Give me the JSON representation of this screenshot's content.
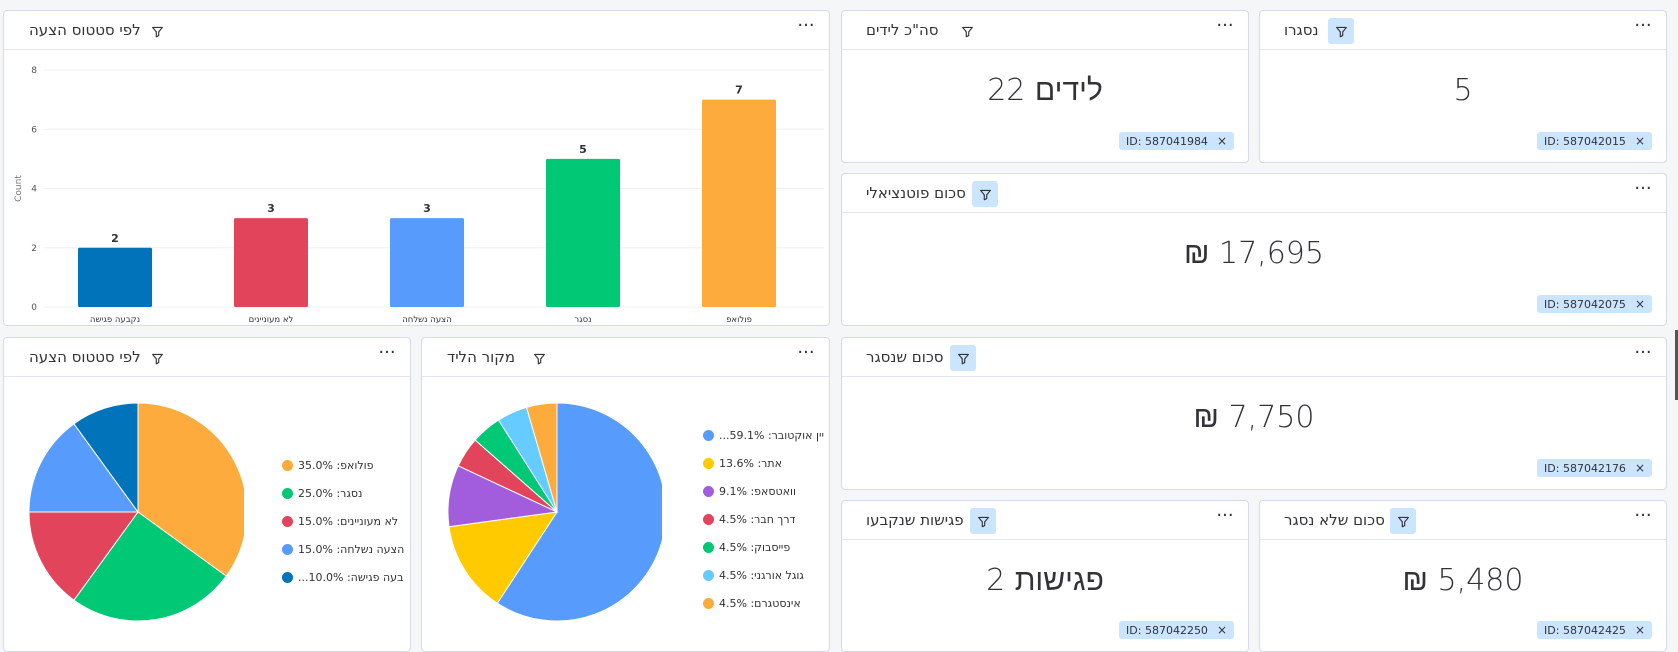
{
  "colors": {
    "orange": "#FDAB3D",
    "green": "#00C875",
    "red": "#E2445C",
    "blue": "#579BFC",
    "dark_blue": "#0073BB",
    "yellow": "#FFCB00",
    "purple": "#A25DDC",
    "light_blue": "#66CCFF"
  },
  "widgets": {
    "bar_card": {
      "title": "לפי סטטוס הצעה",
      "filter_icon": "filter-icon",
      "menu_icon": "more-icon",
      "menu_label": "···"
    },
    "total_leads": {
      "title": "סה\"כ לידים",
      "value": "22 לידים",
      "chip": "ID: 587041984",
      "chip_close": "×"
    },
    "closed": {
      "title": "נסגרו",
      "value": "5",
      "chip": "ID: 587042015",
      "chip_close": "×"
    },
    "potential": {
      "title": "סכום פוטנציאלי",
      "value": "₪ 17,695",
      "chip": "ID: 587042075",
      "chip_close": "×"
    },
    "closed_amount": {
      "title": "סכום שנסגר",
      "value": "₪ 7,750",
      "chip": "ID: 587042176",
      "chip_close": "×"
    },
    "meetings": {
      "title": "פגישות שנקבעו",
      "value": "2 פגישות",
      "chip": "ID: 587042250",
      "chip_close": "×"
    },
    "not_closed": {
      "title": "סכום שלא נסגר",
      "value": "₪ 5,480",
      "chip": "ID: 587042425",
      "chip_close": "×"
    },
    "pie_status": {
      "title": "לפי סטטוס הצעה"
    },
    "pie_source": {
      "title": "מקור הליד"
    }
  },
  "chart_data": [
    {
      "type": "bar",
      "title": "לפי סטטוס הצעה",
      "ylabel": "Count",
      "xlabel": "",
      "categories": [
        "נקבעה פגישה",
        "לא מעוניינים",
        "הצעה נשלחה",
        "נסגר",
        "פולואפ"
      ],
      "values": [
        2,
        3,
        3,
        5,
        7
      ],
      "value_labels": [
        "2",
        "3",
        "3",
        "5",
        "7"
      ],
      "colors": [
        "#0073BB",
        "#E2445C",
        "#579BFC",
        "#00C875",
        "#FDAB3D"
      ],
      "ylim": [
        0,
        8
      ],
      "yticks": [
        0,
        2,
        4,
        6,
        8
      ],
      "ytick_labels": [
        "0",
        "2",
        "4",
        "6",
        "8"
      ],
      "grid": true
    },
    {
      "type": "pie",
      "title": "לפי סטטוס הצעה",
      "legend_position": "right",
      "slices": [
        {
          "label": "פולואפ",
          "legend": "פולואפ: 35.0%",
          "value": 35.0,
          "color": "#FDAB3D"
        },
        {
          "label": "נסגר",
          "legend": "נסגר: 25.0%",
          "value": 25.0,
          "color": "#00C875"
        },
        {
          "label": "לא מעוניינים",
          "legend": "לא מעוניינים: 15.0%",
          "value": 15.0,
          "color": "#E2445C"
        },
        {
          "label": "הצעה נשלחה",
          "legend": "הצעה נשלחה: 15.0%",
          "value": 15.0,
          "color": "#579BFC"
        },
        {
          "label": "נקבעה פגישה",
          "legend": "...בעה פגישה: 10.0%",
          "value": 10.0,
          "color": "#0073BB"
        }
      ]
    },
    {
      "type": "pie",
      "title": "מקור הליד",
      "legend_position": "right",
      "slices": [
        {
          "label": "קמפיין אוקטובר",
          "legend": "...יין אוקטובר: 59.1%",
          "value": 59.1,
          "color": "#579BFC"
        },
        {
          "label": "אתר",
          "legend": "אתר: 13.6%",
          "value": 13.6,
          "color": "#FFCB00"
        },
        {
          "label": "וואטסאפ",
          "legend": "וואטסאפ: 9.1%",
          "value": 9.1,
          "color": "#A25DDC"
        },
        {
          "label": "דרך חבר",
          "legend": "דרך חבר: 4.5%",
          "value": 4.5,
          "color": "#E2445C"
        },
        {
          "label": "פייסבוק",
          "legend": "פייסבוק: 4.5%",
          "value": 4.5,
          "color": "#00C875"
        },
        {
          "label": "גוגל אורגני",
          "legend": "גוגל אורגני: 4.5%",
          "value": 4.5,
          "color": "#66CCFF"
        },
        {
          "label": "אינסטגרם",
          "legend": "אינסטגרם: 4.5%",
          "value": 4.5,
          "color": "#FDAB3D"
        }
      ]
    }
  ]
}
